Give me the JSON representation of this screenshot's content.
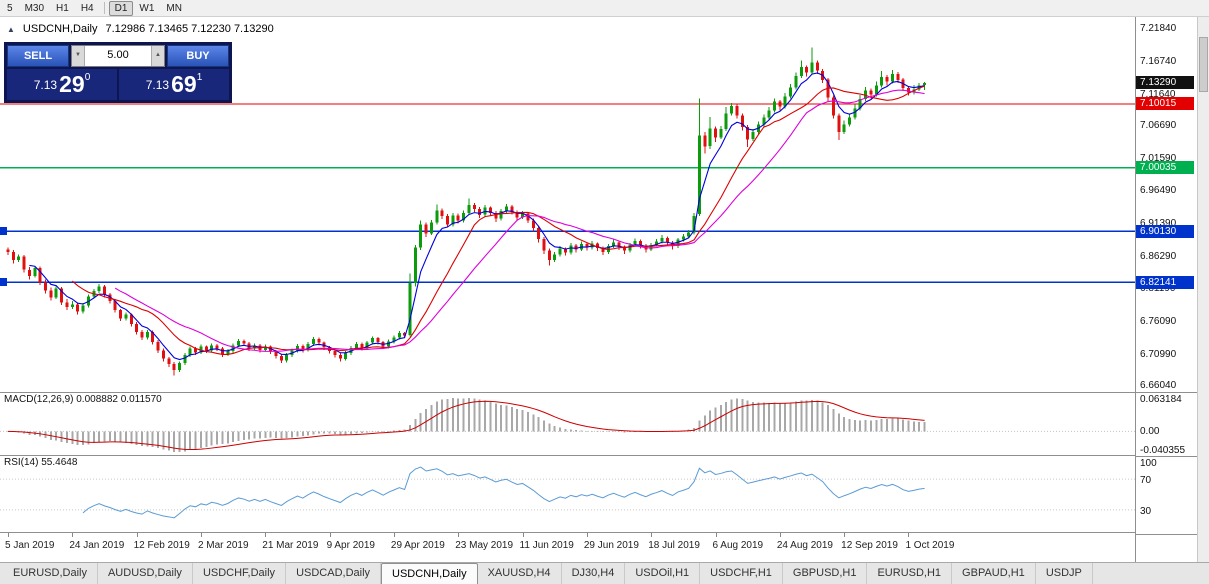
{
  "toolbar": {
    "timeframes": [
      {
        "label": "5"
      },
      {
        "label": "M30"
      },
      {
        "label": "H1"
      },
      {
        "label": "H4",
        "sep_after": true
      },
      {
        "label": "D1",
        "active": true
      },
      {
        "label": "W1"
      },
      {
        "label": "MN"
      }
    ]
  },
  "header": {
    "collapse_icon": "▲",
    "symbol": "USDCNH,Daily",
    "ohlc": "7.12986 7.13465 7.12230 7.13290"
  },
  "trade_panel": {
    "sell_label": "SELL",
    "buy_label": "BUY",
    "volume": "5.00",
    "spin_down_icon": "▼",
    "spin_up_icon": "▲",
    "sell_price": {
      "base": "7.13",
      "pips": "29",
      "point": "0"
    },
    "buy_price": {
      "base": "7.13",
      "pips": "69",
      "point": "1"
    }
  },
  "chart_data": {
    "type": "candlestick",
    "symbol": "USDCNH,Daily",
    "timeframe": "Daily",
    "price_axis": {
      "min": 6.65,
      "max": 7.236,
      "labels": [
        "7.21840",
        "7.16740",
        "7.11640",
        "7.06690",
        "7.01590",
        "6.96490",
        "6.91390",
        "6.86290",
        "6.81190",
        "6.76090",
        "6.70990",
        "6.66040"
      ]
    },
    "price_tags": [
      {
        "label": "7.13290",
        "value": 7.1329,
        "color": "#111111",
        "line": false
      },
      {
        "label": "7.10015",
        "value": 7.10015,
        "color": "#e30000",
        "line": true
      },
      {
        "label": "7.00035",
        "value": 7.00035,
        "color": "#00b050",
        "line": true
      },
      {
        "label": "6.90130",
        "value": 6.9013,
        "color": "#0033cc",
        "line": true,
        "left_marker": true
      },
      {
        "label": "6.82141",
        "value": 6.82141,
        "color": "#0033cc",
        "line": true,
        "left_marker": true
      }
    ],
    "date_labels": [
      {
        "bar": 0,
        "text": "5 Jan 2019"
      },
      {
        "bar": 12,
        "text": "24 Jan 2019"
      },
      {
        "bar": 24,
        "text": "12 Feb 2019"
      },
      {
        "bar": 36,
        "text": "2 Mar 2019"
      },
      {
        "bar": 48,
        "text": "21 Mar 2019"
      },
      {
        "bar": 60,
        "text": "9 Apr 2019"
      },
      {
        "bar": 72,
        "text": "29 Apr 2019"
      },
      {
        "bar": 84,
        "text": "23 May 2019"
      },
      {
        "bar": 96,
        "text": "11 Jun 2019"
      },
      {
        "bar": 108,
        "text": "29 Jun 2019"
      },
      {
        "bar": 120,
        "text": "18 Jul 2019"
      },
      {
        "bar": 132,
        "text": "6 Aug 2019"
      },
      {
        "bar": 144,
        "text": "24 Aug 2019"
      },
      {
        "bar": 156,
        "text": "12 Sep 2019"
      },
      {
        "bar": 168,
        "text": "1 Oct 2019"
      }
    ],
    "colors": {
      "up": "#0b9b0b",
      "down": "#e01010"
    },
    "moving_averages": [
      {
        "period": 5,
        "method": "ema",
        "color": "#0000dd"
      },
      {
        "period": 13,
        "method": "sma",
        "color": "#dd0000"
      },
      {
        "period": 21,
        "method": "sma",
        "color": "#dd00dd"
      }
    ],
    "macd": {
      "label": "MACD(12,26,9) 0.008882 0.011570",
      "fast": 12,
      "slow": 26,
      "signal": 9,
      "axis": [
        "0.063184",
        "0.00",
        "-0.040355"
      ],
      "max": 0.0632,
      "min": -0.0404,
      "hist_color": "#a8a8a8",
      "signal_color": "#cc0000"
    },
    "rsi": {
      "label": "RSI(14) 55.4648",
      "period": 14,
      "axis": [
        "100",
        "70",
        "30"
      ],
      "levels": [
        70,
        30
      ],
      "color": "#5b9bd5"
    },
    "candles": [
      [
        6.873,
        6.876,
        6.864,
        6.869
      ],
      [
        6.869,
        6.872,
        6.851,
        6.856
      ],
      [
        6.856,
        6.865,
        6.853,
        6.862
      ],
      [
        6.862,
        6.864,
        6.837,
        6.841
      ],
      [
        6.841,
        6.845,
        6.826,
        6.831
      ],
      [
        6.831,
        6.847,
        6.829,
        6.844
      ],
      [
        6.844,
        6.846,
        6.817,
        6.821
      ],
      [
        6.821,
        6.826,
        6.804,
        6.809
      ],
      [
        6.809,
        6.813,
        6.793,
        6.798
      ],
      [
        6.798,
        6.815,
        6.795,
        6.812
      ],
      [
        6.812,
        6.814,
        6.786,
        6.79
      ],
      [
        6.79,
        6.795,
        6.778,
        6.783
      ],
      [
        6.783,
        6.792,
        6.78,
        6.787
      ],
      [
        6.787,
        6.79,
        6.771,
        6.776
      ],
      [
        6.776,
        6.789,
        6.773,
        6.785
      ],
      [
        6.785,
        6.802,
        6.782,
        6.799
      ],
      [
        6.799,
        6.811,
        6.796,
        6.808
      ],
      [
        6.808,
        6.819,
        6.805,
        6.815
      ],
      [
        6.815,
        6.817,
        6.798,
        6.802
      ],
      [
        6.802,
        6.805,
        6.788,
        6.792
      ],
      [
        6.792,
        6.795,
        6.774,
        6.778
      ],
      [
        6.778,
        6.78,
        6.761,
        6.765
      ],
      [
        6.765,
        6.774,
        6.762,
        6.771
      ],
      [
        6.771,
        6.773,
        6.752,
        6.756
      ],
      [
        6.756,
        6.759,
        6.74,
        6.744
      ],
      [
        6.744,
        6.747,
        6.731,
        6.735
      ],
      [
        6.735,
        6.747,
        6.732,
        6.744
      ],
      [
        6.744,
        6.746,
        6.724,
        6.728
      ],
      [
        6.728,
        6.731,
        6.711,
        6.715
      ],
      [
        6.715,
        6.718,
        6.698,
        6.702
      ],
      [
        6.702,
        6.705,
        6.689,
        6.694
      ],
      [
        6.694,
        6.697,
        6.676,
        6.684
      ],
      [
        6.684,
        6.698,
        6.681,
        6.695
      ],
      [
        6.695,
        6.711,
        6.692,
        6.708
      ],
      [
        6.708,
        6.721,
        6.705,
        6.718
      ],
      [
        6.718,
        6.72,
        6.708,
        6.712
      ],
      [
        6.712,
        6.724,
        6.709,
        6.721
      ],
      [
        6.721,
        6.723,
        6.711,
        6.715
      ],
      [
        6.715,
        6.726,
        6.712,
        6.723
      ],
      [
        6.723,
        6.725,
        6.714,
        6.718
      ],
      [
        6.718,
        6.72,
        6.705,
        6.709
      ],
      [
        6.709,
        6.717,
        6.706,
        6.714
      ],
      [
        6.714,
        6.726,
        6.711,
        6.723
      ],
      [
        6.723,
        6.733,
        6.72,
        6.73
      ],
      [
        6.73,
        6.732,
        6.722,
        6.726
      ],
      [
        6.726,
        6.728,
        6.714,
        6.718
      ],
      [
        6.718,
        6.726,
        6.715,
        6.723
      ],
      [
        6.723,
        6.725,
        6.712,
        6.716
      ],
      [
        6.716,
        6.724,
        6.713,
        6.721
      ],
      [
        6.721,
        6.723,
        6.709,
        6.713
      ],
      [
        6.713,
        6.716,
        6.702,
        6.706
      ],
      [
        6.706,
        6.709,
        6.695,
        6.699
      ],
      [
        6.699,
        6.711,
        6.696,
        6.708
      ],
      [
        6.708,
        6.718,
        6.705,
        6.715
      ],
      [
        6.715,
        6.725,
        6.712,
        6.722
      ],
      [
        6.722,
        6.724,
        6.712,
        6.716
      ],
      [
        6.716,
        6.728,
        6.713,
        6.725
      ],
      [
        6.725,
        6.736,
        6.722,
        6.733
      ],
      [
        6.733,
        6.735,
        6.723,
        6.727
      ],
      [
        6.727,
        6.729,
        6.716,
        6.72
      ],
      [
        6.72,
        6.722,
        6.71,
        6.714
      ],
      [
        6.714,
        6.716,
        6.704,
        6.708
      ],
      [
        6.708,
        6.711,
        6.698,
        6.702
      ],
      [
        6.702,
        6.714,
        6.699,
        6.711
      ],
      [
        6.711,
        6.722,
        6.708,
        6.719
      ],
      [
        6.719,
        6.728,
        6.716,
        6.725
      ],
      [
        6.725,
        6.727,
        6.715,
        6.719
      ],
      [
        6.719,
        6.73,
        6.716,
        6.727
      ],
      [
        6.727,
        6.737,
        6.724,
        6.734
      ],
      [
        6.734,
        6.736,
        6.724,
        6.728
      ],
      [
        6.728,
        6.73,
        6.717,
        6.721
      ],
      [
        6.721,
        6.732,
        6.718,
        6.729
      ],
      [
        6.729,
        6.738,
        6.726,
        6.735
      ],
      [
        6.735,
        6.745,
        6.732,
        6.742
      ],
      [
        6.742,
        6.744,
        6.734,
        6.738
      ],
      [
        6.739,
        6.835,
        6.737,
        6.82
      ],
      [
        6.82,
        6.88,
        6.815,
        6.876
      ],
      [
        6.876,
        6.918,
        6.872,
        6.912
      ],
      [
        6.912,
        6.915,
        6.892,
        6.898
      ],
      [
        6.898,
        6.919,
        6.895,
        6.915
      ],
      [
        6.915,
        6.943,
        6.912,
        6.934
      ],
      [
        6.934,
        6.937,
        6.92,
        6.925
      ],
      [
        6.925,
        6.928,
        6.907,
        6.912
      ],
      [
        6.912,
        6.93,
        6.909,
        6.926
      ],
      [
        6.926,
        6.929,
        6.913,
        6.918
      ],
      [
        6.918,
        6.934,
        6.915,
        6.93
      ],
      [
        6.93,
        6.952,
        6.927,
        6.942
      ],
      [
        6.942,
        6.945,
        6.931,
        6.936
      ],
      [
        6.936,
        6.939,
        6.922,
        6.927
      ],
      [
        6.927,
        6.942,
        6.924,
        6.938
      ],
      [
        6.938,
        6.94,
        6.926,
        6.93
      ],
      [
        6.93,
        6.933,
        6.916,
        6.921
      ],
      [
        6.921,
        6.936,
        6.918,
        6.933
      ],
      [
        6.933,
        6.944,
        6.93,
        6.94
      ],
      [
        6.94,
        6.942,
        6.927,
        6.931
      ],
      [
        6.931,
        6.934,
        6.918,
        6.923
      ],
      [
        6.923,
        6.933,
        6.92,
        6.929
      ],
      [
        6.929,
        6.931,
        6.914,
        6.918
      ],
      [
        6.918,
        6.921,
        6.901,
        6.906
      ],
      [
        6.906,
        6.909,
        6.884,
        6.889
      ],
      [
        6.889,
        6.892,
        6.866,
        6.871
      ],
      [
        6.871,
        6.874,
        6.848,
        6.856
      ],
      [
        6.856,
        6.869,
        6.853,
        6.865
      ],
      [
        6.865,
        6.878,
        6.862,
        6.874
      ],
      [
        6.874,
        6.876,
        6.863,
        6.868
      ],
      [
        6.868,
        6.883,
        6.865,
        6.879
      ],
      [
        6.879,
        6.881,
        6.868,
        6.873
      ],
      [
        6.873,
        6.885,
        6.87,
        6.881
      ],
      [
        6.881,
        6.883,
        6.871,
        6.876
      ],
      [
        6.876,
        6.886,
        6.873,
        6.882
      ],
      [
        6.882,
        6.884,
        6.87,
        6.875
      ],
      [
        6.875,
        6.877,
        6.864,
        6.869
      ],
      [
        6.869,
        6.881,
        6.866,
        6.878
      ],
      [
        6.878,
        6.888,
        6.875,
        6.884
      ],
      [
        6.884,
        6.886,
        6.872,
        6.877
      ],
      [
        6.877,
        6.879,
        6.866,
        6.871
      ],
      [
        6.871,
        6.883,
        6.868,
        6.88
      ],
      [
        6.88,
        6.89,
        6.877,
        6.886
      ],
      [
        6.886,
        6.888,
        6.874,
        6.879
      ],
      [
        6.879,
        6.881,
        6.868,
        6.873
      ],
      [
        6.873,
        6.883,
        6.87,
        6.88
      ],
      [
        6.88,
        6.889,
        6.877,
        6.885
      ],
      [
        6.885,
        6.895,
        6.882,
        6.891
      ],
      [
        6.891,
        6.893,
        6.879,
        6.884
      ],
      [
        6.884,
        6.886,
        6.873,
        6.878
      ],
      [
        6.878,
        6.891,
        6.875,
        6.888
      ],
      [
        6.888,
        6.897,
        6.885,
        6.893
      ],
      [
        6.893,
        6.903,
        6.89,
        6.899
      ],
      [
        6.899,
        6.93,
        6.896,
        6.925
      ],
      [
        6.928,
        7.109,
        6.925,
        7.051
      ],
      [
        7.051,
        7.056,
        7.023,
        7.034
      ],
      [
        7.034,
        7.08,
        7.03,
        7.062
      ],
      [
        7.062,
        7.065,
        7.041,
        7.048
      ],
      [
        7.048,
        7.066,
        7.045,
        7.061
      ],
      [
        7.061,
        7.095,
        7.058,
        7.085
      ],
      [
        7.085,
        7.102,
        7.082,
        7.097
      ],
      [
        7.097,
        7.099,
        7.077,
        7.082
      ],
      [
        7.082,
        7.085,
        7.059,
        7.064
      ],
      [
        7.064,
        7.067,
        7.033,
        7.045
      ],
      [
        7.045,
        7.061,
        7.042,
        7.056
      ],
      [
        7.056,
        7.073,
        7.053,
        7.068
      ],
      [
        7.068,
        7.084,
        7.065,
        7.079
      ],
      [
        7.079,
        7.095,
        7.076,
        7.09
      ],
      [
        7.09,
        7.109,
        7.087,
        7.104
      ],
      [
        7.104,
        7.106,
        7.09,
        7.096
      ],
      [
        7.096,
        7.117,
        7.093,
        7.112
      ],
      [
        7.112,
        7.131,
        7.109,
        7.126
      ],
      [
        7.126,
        7.149,
        7.123,
        7.144
      ],
      [
        7.144,
        7.168,
        7.141,
        7.158
      ],
      [
        7.158,
        7.16,
        7.143,
        7.149
      ],
      [
        7.149,
        7.188,
        7.146,
        7.165
      ],
      [
        7.165,
        7.168,
        7.147,
        7.152
      ],
      [
        7.152,
        7.155,
        7.133,
        7.138
      ],
      [
        7.138,
        7.141,
        7.105,
        7.11
      ],
      [
        7.11,
        7.113,
        7.077,
        7.082
      ],
      [
        7.082,
        7.085,
        7.044,
        7.056
      ],
      [
        7.056,
        7.074,
        7.053,
        7.068
      ],
      [
        7.068,
        7.085,
        7.065,
        7.079
      ],
      [
        7.079,
        7.099,
        7.076,
        7.093
      ],
      [
        7.093,
        7.114,
        7.09,
        7.108
      ],
      [
        7.108,
        7.127,
        7.105,
        7.121
      ],
      [
        7.121,
        7.124,
        7.109,
        7.115
      ],
      [
        7.115,
        7.135,
        7.112,
        7.129
      ],
      [
        7.129,
        7.152,
        7.126,
        7.142
      ],
      [
        7.142,
        7.145,
        7.129,
        7.135
      ],
      [
        7.135,
        7.153,
        7.132,
        7.147
      ],
      [
        7.147,
        7.15,
        7.133,
        7.138
      ],
      [
        7.138,
        7.141,
        7.12,
        7.125
      ],
      [
        7.125,
        7.128,
        7.113,
        7.118
      ],
      [
        7.118,
        7.13,
        7.115,
        7.123
      ],
      [
        7.123,
        7.133,
        7.12,
        7.129
      ],
      [
        7.1299,
        7.1347,
        7.1223,
        7.1329
      ]
    ]
  },
  "tabs": [
    {
      "label": "EURUSD,Daily"
    },
    {
      "label": "AUDUSD,Daily"
    },
    {
      "label": "USDCHF,Daily"
    },
    {
      "label": "USDCAD,Daily"
    },
    {
      "label": "USDCNH,Daily",
      "active": true
    },
    {
      "label": "XAUUSD,H4"
    },
    {
      "label": "DJ30,H4"
    },
    {
      "label": "USDOil,H1"
    },
    {
      "label": "USDCHF,H1"
    },
    {
      "label": "GBPUSD,H1"
    },
    {
      "label": "EURUSD,H1"
    },
    {
      "label": "GBPAUD,H1"
    },
    {
      "label": "USDJP"
    }
  ]
}
